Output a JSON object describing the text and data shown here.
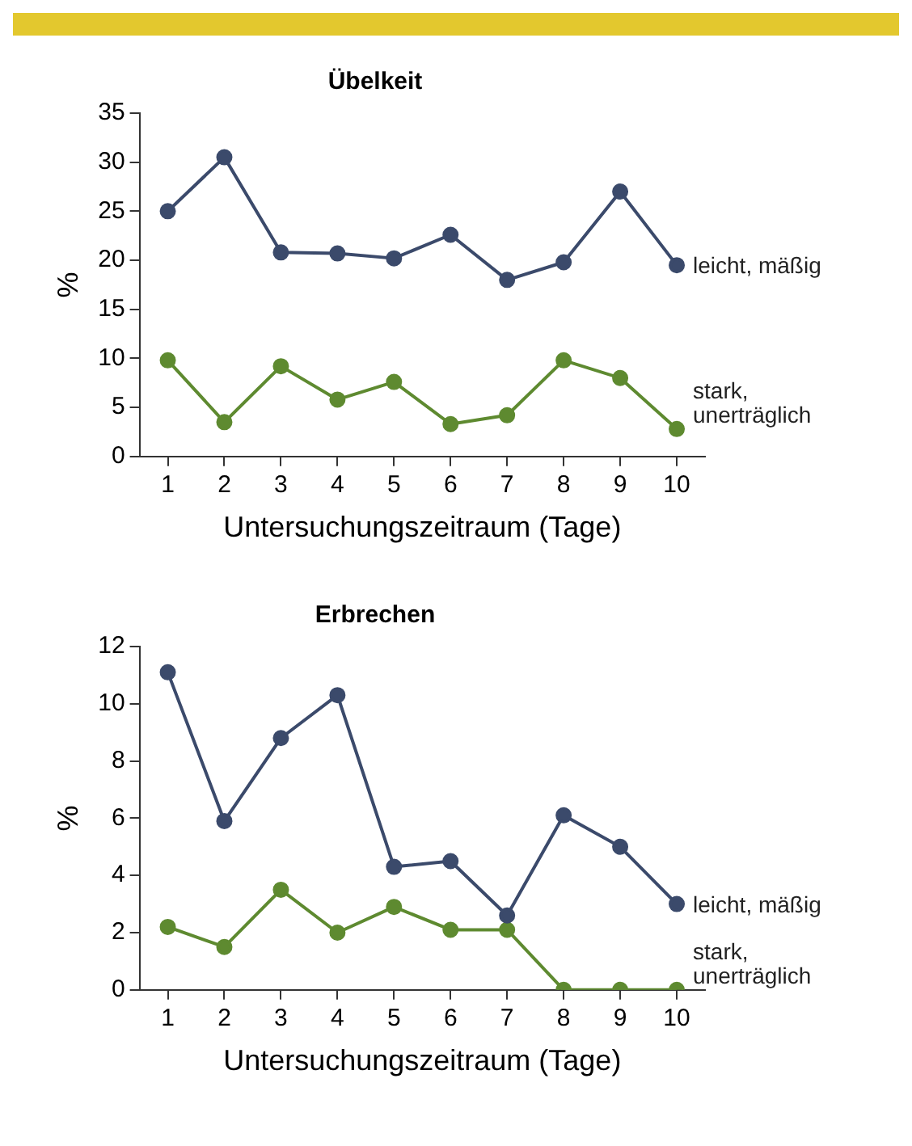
{
  "chart_data": [
    {
      "type": "line",
      "title": "Übelkeit",
      "xlabel": "Untersuchungszeitraum (Tage)",
      "ylabel": "%",
      "categories": [
        "1",
        "2",
        "3",
        "4",
        "5",
        "6",
        "7",
        "8",
        "9",
        "10"
      ],
      "ylim": [
        0,
        35
      ],
      "yticks": [
        0,
        5,
        10,
        15,
        20,
        25,
        30,
        35
      ],
      "grid": false,
      "legend": false,
      "marker": "circle",
      "series": [
        {
          "name": "leicht, mäßig",
          "color": "#3b4a6b",
          "values": [
            25,
            30.5,
            20.8,
            20.7,
            20.2,
            22.6,
            18,
            19.8,
            27,
            19.5
          ]
        },
        {
          "name": "stark, unerträglich",
          "color": "#5e8a30",
          "values": [
            9.8,
            3.5,
            9.2,
            5.8,
            7.6,
            3.3,
            4.2,
            9.8,
            8,
            2.8
          ]
        }
      ]
    },
    {
      "type": "line",
      "title": "Erbrechen",
      "xlabel": "Untersuchungszeitraum (Tage)",
      "ylabel": "%",
      "categories": [
        "1",
        "2",
        "3",
        "4",
        "5",
        "6",
        "7",
        "8",
        "9",
        "10"
      ],
      "ylim": [
        0,
        12
      ],
      "yticks": [
        0,
        2,
        4,
        6,
        8,
        10,
        12
      ],
      "grid": false,
      "legend": false,
      "marker": "circle",
      "series": [
        {
          "name": "leicht, mäßig",
          "color": "#3b4a6b",
          "values": [
            11.1,
            5.9,
            8.8,
            10.3,
            4.3,
            4.5,
            2.6,
            6.1,
            5.0,
            3.0
          ]
        },
        {
          "name": "stark, unerträglich",
          "color": "#5e8a30",
          "values": [
            2.2,
            1.5,
            3.5,
            2.0,
            2.9,
            2.1,
            2.1,
            0,
            0,
            0
          ]
        }
      ]
    }
  ]
}
